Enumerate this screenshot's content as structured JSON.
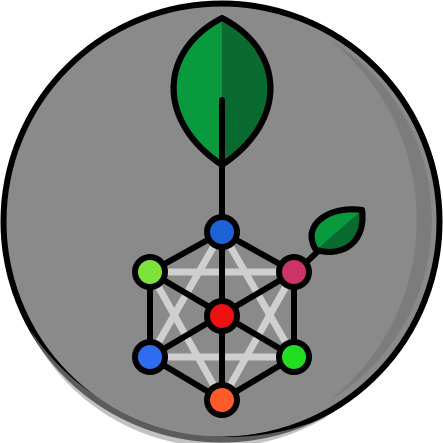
{
  "logo": {
    "icon": "leaf-network-molecule-icon",
    "colors": {
      "disc": "#8a8a8a",
      "disc_shade": "#7a7a7a",
      "disc_highlight": "#9a9a9a",
      "outline": "#000000",
      "stem": "#000000",
      "lattice": "#cfcfcf",
      "leaf_light": "#0a9a3e",
      "leaf_dark": "#0a6b30",
      "node_top": "#1e63d6",
      "node_upper_left": "#7fe23a",
      "node_upper_right": "#cc3366",
      "node_center": "#ee1111",
      "node_lower_left": "#2f6cf0",
      "node_lower_right": "#22dd22",
      "node_bottom": "#ff5a2a"
    }
  }
}
